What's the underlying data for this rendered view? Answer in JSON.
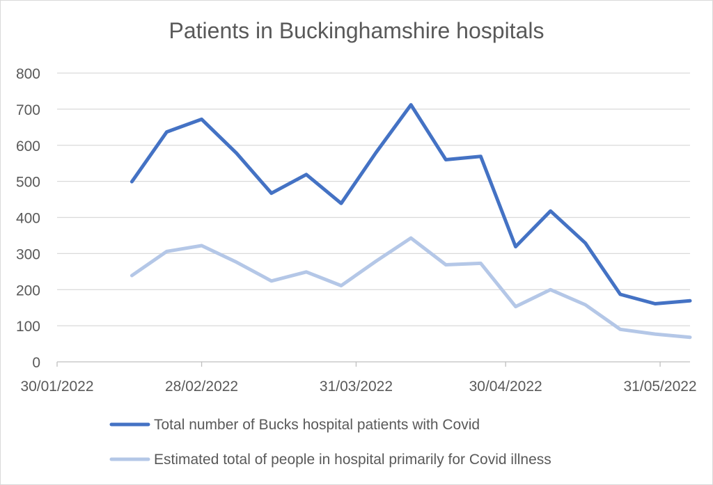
{
  "chart_data": {
    "type": "line",
    "title": "Patients in Buckinghamshire hospitals",
    "xlabel": "",
    "ylabel": "",
    "x_axis": {
      "type": "date",
      "range": [
        "2022-01-30",
        "2022-06-06"
      ],
      "tick_dates": [
        "2022-01-30",
        "2022-02-28",
        "2022-03-31",
        "2022-04-30",
        "2022-05-31"
      ],
      "tick_labels": [
        "30/01/2022",
        "28/02/2022",
        "31/03/2022",
        "30/04/2022",
        "31/05/2022"
      ]
    },
    "y_axis": {
      "range": [
        0,
        800
      ],
      "ticks": [
        0,
        100,
        200,
        300,
        400,
        500,
        600,
        700,
        800
      ],
      "gridlines": true
    },
    "legend_position": "bottom",
    "dates": [
      "2022-02-14",
      "2022-02-21",
      "2022-02-28",
      "2022-03-07",
      "2022-03-14",
      "2022-03-21",
      "2022-03-28",
      "2022-04-04",
      "2022-04-11",
      "2022-04-18",
      "2022-04-25",
      "2022-05-02",
      "2022-05-09",
      "2022-05-16",
      "2022-05-23",
      "2022-05-30",
      "2022-06-06"
    ],
    "series": [
      {
        "name": "Total number of Bucks hospital patients with Covid",
        "color": "#4472c4",
        "values": [
          499,
          637,
          672,
          578,
          467,
          519,
          439,
          580,
          712,
          560,
          569,
          319,
          418,
          329,
          187,
          161,
          169
        ]
      },
      {
        "name": "Estimated total of people in hospital primarily for Covid illness",
        "color": "#b4c7e7",
        "values": [
          239,
          306,
          322,
          276,
          224,
          249,
          211,
          279,
          343,
          269,
          273,
          153,
          200,
          158,
          90,
          77,
          68
        ]
      }
    ]
  }
}
